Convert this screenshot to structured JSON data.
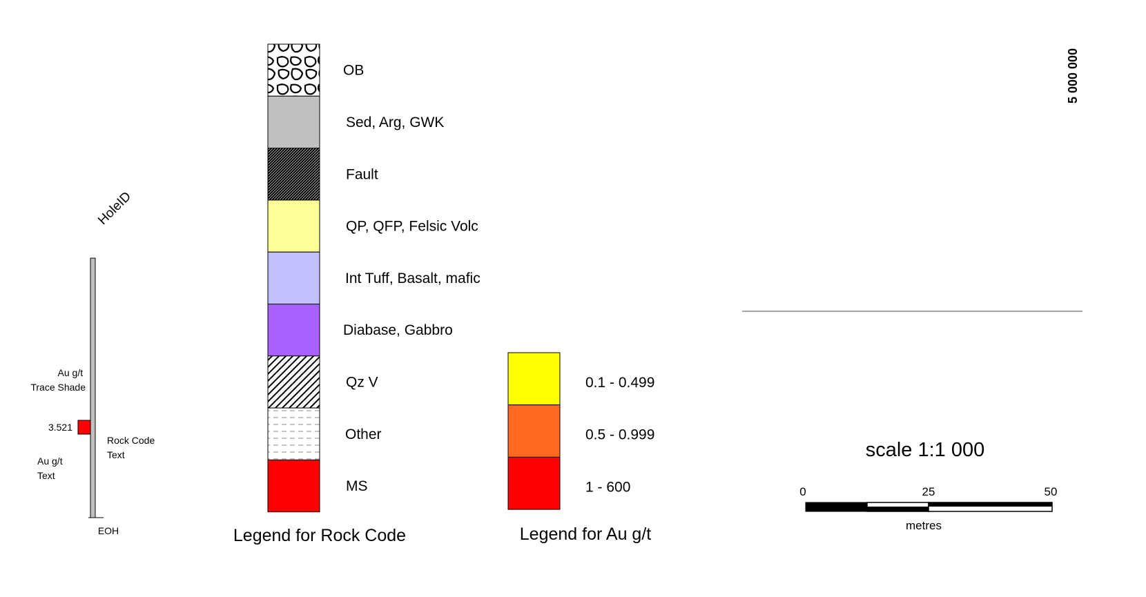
{
  "hole_key": {
    "hole_id_label": "HoleID",
    "au_trace_shade_label": "Au g/t\nTrace Shade",
    "au_value": "3.521",
    "au_text_label": "Au g/t\nText",
    "rock_code_text_label": "Rock Code\nText",
    "eoh_label": "EOH",
    "trace_color": "#C0C0C0",
    "au_shade_color": "#FF0000"
  },
  "rock_code_legend": {
    "title": "Legend for Rock Code",
    "items": [
      {
        "label": "OB",
        "pattern": "overburden"
      },
      {
        "label": "Sed, Arg, GWK",
        "color": "#C0C0C0"
      },
      {
        "label": "Fault",
        "pattern": "fault-hatch"
      },
      {
        "label": "QP, QFP, Felsic Volc",
        "color": "#FFFF99"
      },
      {
        "label": "Int Tuff, Basalt, mafic",
        "color": "#C0C0FF"
      },
      {
        "label": "Diabase,  Gabbro",
        "color": "#A960FF"
      },
      {
        "label": "Qz V",
        "pattern": "diagonal-hatch"
      },
      {
        "label": "Other",
        "pattern": "dashed-lines"
      },
      {
        "label": "MS",
        "color": "#FF0000"
      }
    ]
  },
  "au_legend": {
    "title": "Legend for Au g/t",
    "items": [
      {
        "label": "0.1 - 0.499",
        "color": "#FFFF00"
      },
      {
        "label": "0.5 - 0.999",
        "color": "#FF6A20"
      },
      {
        "label": "1 - 600",
        "color": "#FF0000"
      }
    ]
  },
  "scale": {
    "title": "scale 1:1 000",
    "ticks": [
      "0",
      "25",
      "50"
    ],
    "unit": "metres"
  },
  "corner_text": "5 000 000"
}
